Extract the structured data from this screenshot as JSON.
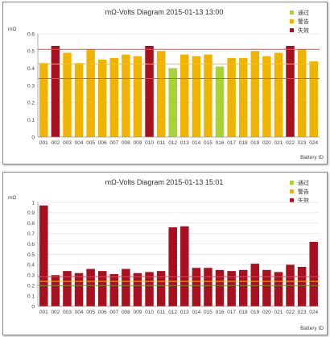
{
  "charts": [
    {
      "type": "bar",
      "title": "mΩ-Volts Diagram 2015-01-13 13:00",
      "ylabel": "mΩ",
      "xlabel": "Battery ID",
      "ylim": [
        0,
        0.6
      ],
      "yticks": [
        "0",
        "0.1",
        "0.2",
        "0.3",
        "0.4",
        "0.5",
        "0.6"
      ],
      "categories": [
        "001",
        "002",
        "003",
        "004",
        "005",
        "006",
        "007",
        "008",
        "009",
        "010",
        "011",
        "012",
        "013",
        "014",
        "015",
        "016",
        "017",
        "018",
        "019",
        "020",
        "021",
        "022",
        "023",
        "024"
      ],
      "values": [
        0.43,
        0.53,
        0.49,
        0.43,
        0.51,
        0.45,
        0.46,
        0.48,
        0.47,
        0.53,
        0.5,
        0.4,
        0.48,
        0.47,
        0.48,
        0.41,
        0.46,
        0.46,
        0.5,
        0.47,
        0.49,
        0.53,
        0.51,
        0.44
      ],
      "status": [
        "warn",
        "fail",
        "warn",
        "warn",
        "warn",
        "warn",
        "warn",
        "warn",
        "warn",
        "fail",
        "warn",
        "pass",
        "warn",
        "warn",
        "warn",
        "pass",
        "warn",
        "warn",
        "warn",
        "warn",
        "warn",
        "fail",
        "warn",
        "warn"
      ],
      "reference_lines": [
        {
          "value": 0.51,
          "color": "#e34a4a"
        },
        {
          "value": 0.425,
          "color": "#f0c419"
        },
        {
          "value": 0.34,
          "color": "#6f8f3a"
        }
      ],
      "legend": [
        {
          "label": "通过",
          "color": "#a8d13a"
        },
        {
          "label": "警告",
          "color": "#f0b400"
        },
        {
          "label": "失效",
          "color": "#a8101f"
        }
      ]
    },
    {
      "type": "bar",
      "title": "mΩ-Volts Diagram 2015-01-13 15:01",
      "ylabel": "mΩ",
      "xlabel": "Battery ID",
      "ylim": [
        0,
        1
      ],
      "yticks": [
        "0",
        "0.1",
        "0.2",
        "0.3",
        "0.4",
        "0.5",
        "0.6",
        "0.7",
        "0.8",
        "0.9",
        "1"
      ],
      "categories": [
        "001",
        "002",
        "003",
        "004",
        "005",
        "006",
        "007",
        "008",
        "009",
        "010",
        "011",
        "012",
        "013",
        "014",
        "015",
        "016",
        "017",
        "018",
        "019",
        "020",
        "021",
        "022",
        "023",
        "024"
      ],
      "values": [
        0.97,
        0.3,
        0.34,
        0.32,
        0.36,
        0.34,
        0.31,
        0.36,
        0.32,
        0.33,
        0.34,
        0.76,
        0.77,
        0.37,
        0.37,
        0.35,
        0.34,
        0.35,
        0.41,
        0.35,
        0.33,
        0.4,
        0.38,
        0.62
      ],
      "status": [
        "fail",
        "fail",
        "fail",
        "fail",
        "fail",
        "fail",
        "fail",
        "fail",
        "fail",
        "fail",
        "fail",
        "fail",
        "fail",
        "fail",
        "fail",
        "fail",
        "fail",
        "fail",
        "fail",
        "fail",
        "fail",
        "fail",
        "fail",
        "fail"
      ],
      "reference_lines": [
        {
          "value": 0.285,
          "color": "#e34a4a"
        },
        {
          "value": 0.24,
          "color": "#f0c419"
        },
        {
          "value": 0.2,
          "color": "#6f8f3a"
        }
      ],
      "legend": [
        {
          "label": "通过",
          "color": "#a8d13a"
        },
        {
          "label": "警告",
          "color": "#f0b400"
        },
        {
          "label": "失效",
          "color": "#a8101f"
        }
      ]
    }
  ],
  "colors": {
    "pass": "#a8d13a",
    "warn": "#f0b400",
    "fail": "#a8101f"
  }
}
